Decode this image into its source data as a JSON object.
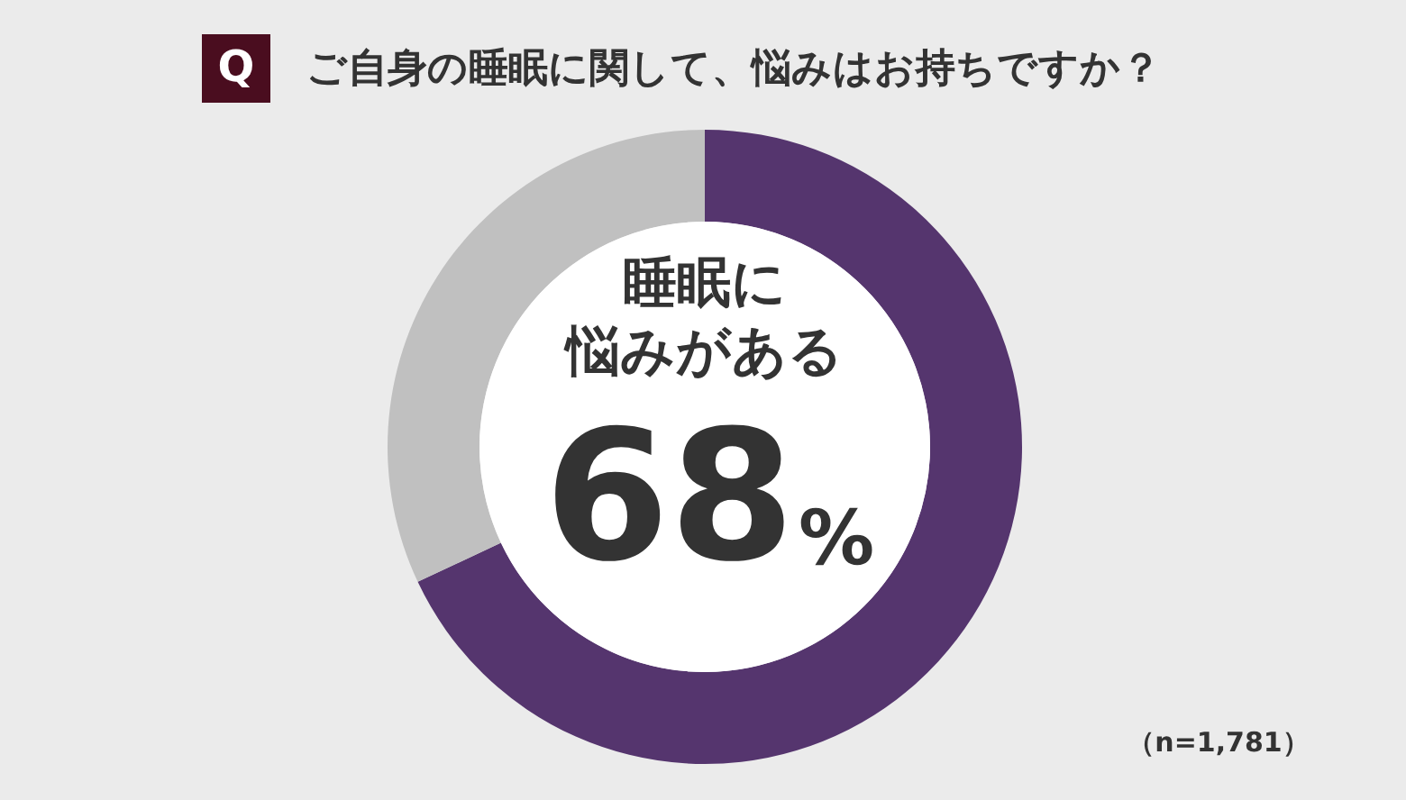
{
  "chart_data": {
    "type": "donut",
    "title": "ご自身の睡眠に関して、悩みはお持ちですか？",
    "categories": [
      "睡眠に悩みがある",
      null
    ],
    "values": [
      68,
      32
    ],
    "colors": [
      "#55356e",
      "#c0c0c0"
    ],
    "value_labels": [
      "68%",
      null
    ],
    "annotations": [
      "Q",
      "（n=1,781）"
    ]
  }
}
